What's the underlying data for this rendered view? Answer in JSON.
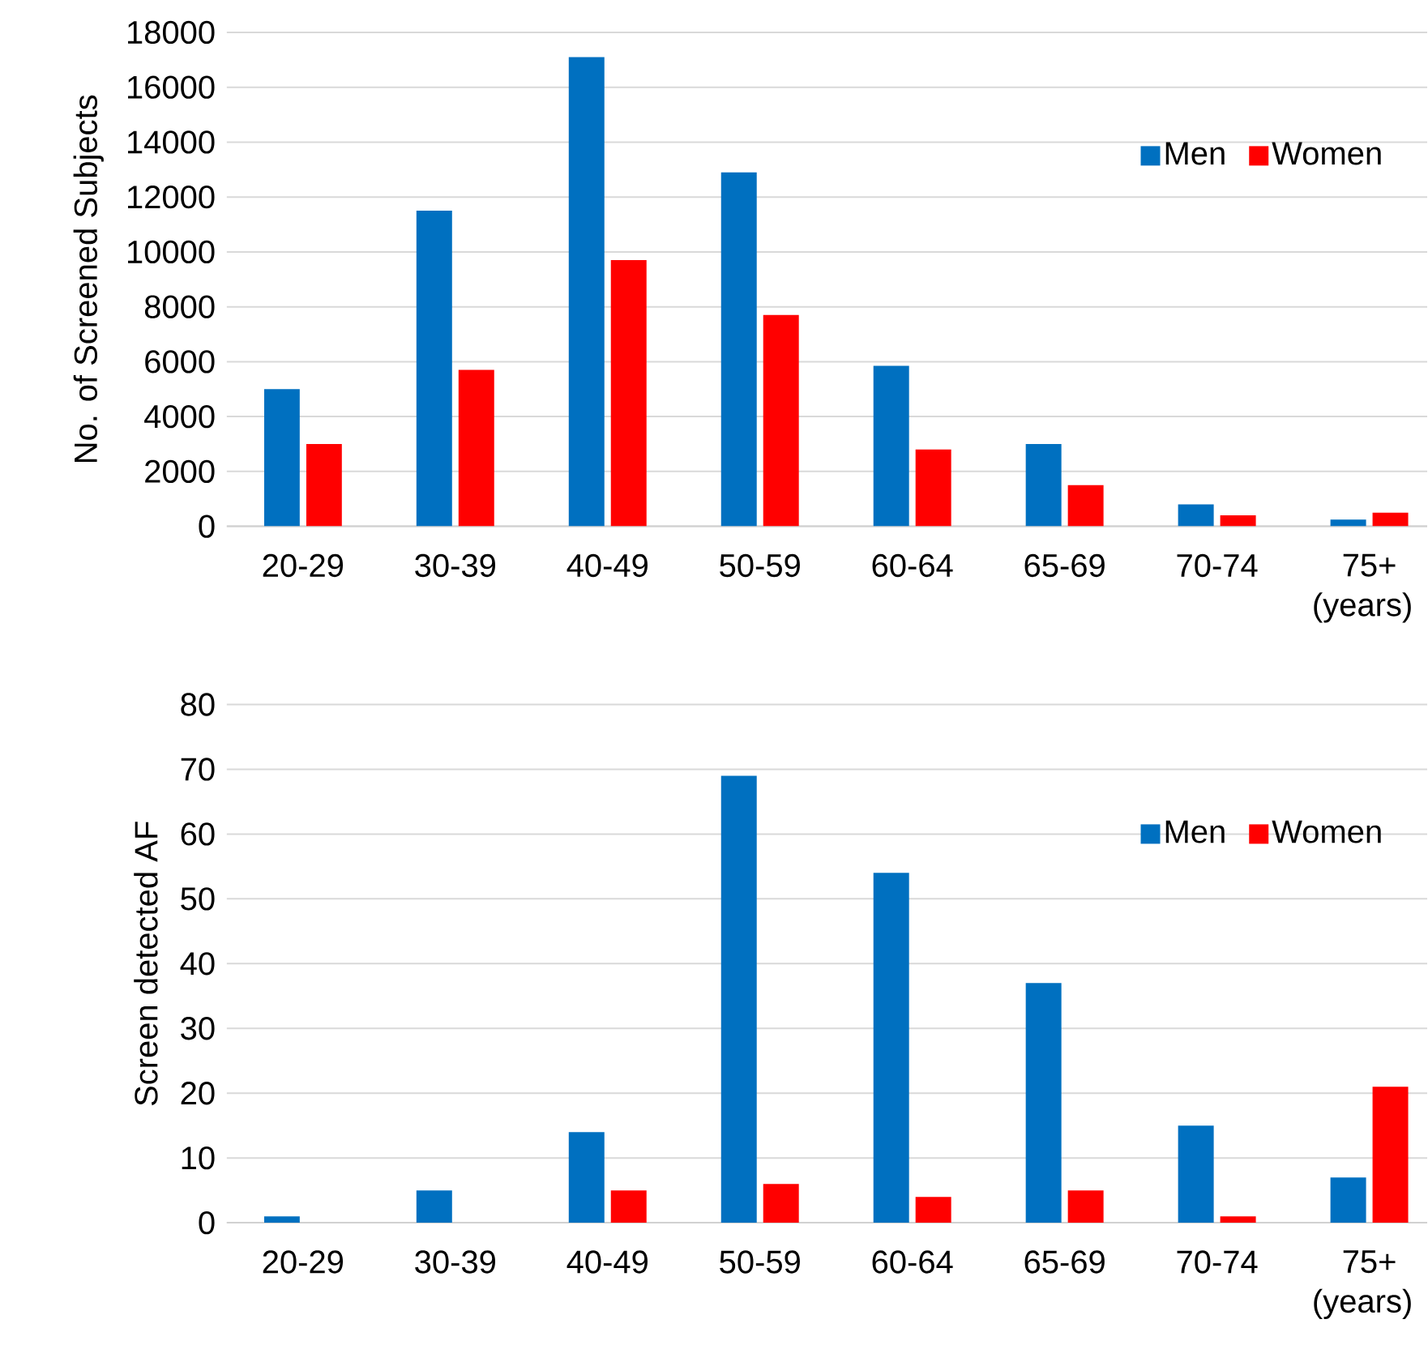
{
  "chart_data": [
    {
      "type": "bar",
      "ylabel": "No. of Screened Subjects",
      "xlabel": "(years)",
      "categories": [
        "20-29",
        "30-39",
        "40-49",
        "50-59",
        "60-64",
        "65-69",
        "70-74",
        "75+"
      ],
      "series": [
        {
          "name": "Men",
          "color": "#0070c0",
          "values": [
            5000,
            11500,
            17100,
            12900,
            5850,
            3000,
            800,
            250
          ]
        },
        {
          "name": "Women",
          "color": "#ff0000",
          "values": [
            3000,
            5700,
            9700,
            7700,
            2800,
            1500,
            400,
            500
          ]
        }
      ],
      "ylim": [
        0,
        18000
      ],
      "yticks": [
        0,
        2000,
        4000,
        6000,
        8000,
        10000,
        12000,
        14000,
        16000,
        18000
      ],
      "grid": "y",
      "legend": "top right"
    },
    {
      "type": "bar",
      "ylabel": "Screen detected AF",
      "xlabel": "(years)",
      "categories": [
        "20-29",
        "30-39",
        "40-49",
        "50-59",
        "60-64",
        "65-69",
        "70-74",
        "75+"
      ],
      "series": [
        {
          "name": "Men",
          "color": "#0070c0",
          "values": [
            1,
            5,
            14,
            69,
            54,
            37,
            15,
            7
          ]
        },
        {
          "name": "Women",
          "color": "#ff0000",
          "values": [
            0,
            0,
            5,
            6,
            4,
            5,
            1,
            21
          ]
        }
      ],
      "ylim": [
        0,
        80
      ],
      "yticks": [
        0,
        10,
        20,
        30,
        40,
        50,
        60,
        70,
        80
      ],
      "grid": "y",
      "legend": "top right"
    }
  ]
}
